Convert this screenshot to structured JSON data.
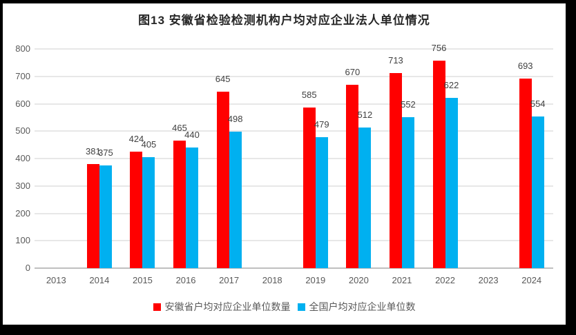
{
  "chart_data": {
    "type": "bar",
    "title": "图13  安徽省检验检测机构户均对应企业法人单位情况",
    "categories": [
      "2013",
      "2014",
      "2015",
      "2016",
      "2017",
      "2018",
      "2019",
      "2020",
      "2021",
      "2022",
      "2023",
      "2024"
    ],
    "series": [
      {
        "name": "安徽省户均对应企业单位数量",
        "color": "#FF0000",
        "values": [
          null,
          381,
          424,
          465,
          645,
          null,
          585,
          670,
          713,
          756,
          null,
          693
        ]
      },
      {
        "name": "全国户均对应企业单位数",
        "color": "#00B0F0",
        "values": [
          null,
          375,
          405,
          440,
          498,
          null,
          479,
          512,
          552,
          622,
          null,
          554
        ]
      }
    ],
    "ylim": [
      0,
      800
    ],
    "yticks": [
      0,
      100,
      200,
      300,
      400,
      500,
      600,
      700,
      800
    ],
    "grid": true,
    "legend_position": "bottom",
    "colors": {
      "grid": "#E7E7E7",
      "axis": "#BFBFBF",
      "tick_text": "#595959",
      "data_label_text": "#404040",
      "title_text": "#262626",
      "panel_bg": "#FFFFFF",
      "frame_bg": "#000000"
    }
  }
}
